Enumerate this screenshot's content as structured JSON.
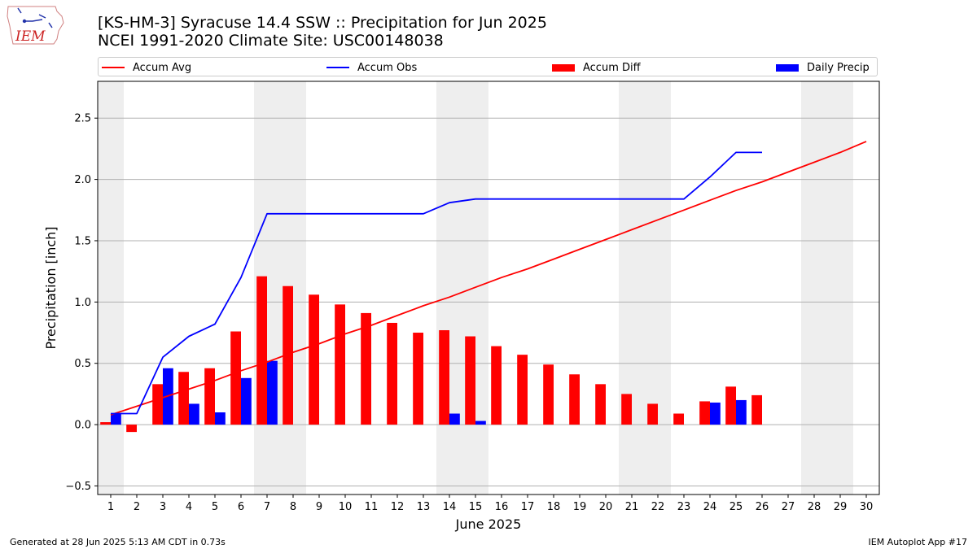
{
  "header": {
    "title_line1": "[KS-HM-3] Syracuse 14.4 SSW :: Precipitation for Jun 2025",
    "title_line2": "NCEI 1991-2020 Climate Site: USC00148038"
  },
  "logo": {
    "text": "IEM"
  },
  "legend": {
    "items": [
      {
        "label": "Accum Avg",
        "color": "#ff0000",
        "kind": "line"
      },
      {
        "label": "Accum Obs",
        "color": "#0000ff",
        "kind": "line"
      },
      {
        "label": "Accum Diff",
        "color": "#ff0000",
        "kind": "bar"
      },
      {
        "label": "Daily Precip",
        "color": "#0000ff",
        "kind": "bar"
      }
    ]
  },
  "footer": {
    "left": "Generated at 28 Jun 2025 5:13 AM CDT in 0.73s",
    "right": "IEM Autoplot App #17"
  },
  "chart_data": {
    "type": "bar",
    "xlabel": "June 2025",
    "ylabel": "Precipitation [inch]",
    "ylim": [
      -0.57,
      2.8
    ],
    "xlim": [
      0.5,
      30.5
    ],
    "yticks": [
      -0.5,
      0.0,
      0.5,
      1.0,
      1.5,
      2.0,
      2.5
    ],
    "ytick_labels": [
      "−0.5",
      "0.0",
      "0.5",
      "1.0",
      "1.5",
      "2.0",
      "2.5"
    ],
    "categories": [
      "1",
      "2",
      "3",
      "4",
      "5",
      "6",
      "7",
      "8",
      "9",
      "10",
      "11",
      "12",
      "13",
      "14",
      "15",
      "16",
      "17",
      "18",
      "19",
      "20",
      "21",
      "22",
      "23",
      "24",
      "25",
      "26",
      "27",
      "28",
      "29",
      "30"
    ],
    "grid": "horizontal",
    "weekend_shading": [
      [
        0.5,
        1.5
      ],
      [
        6.5,
        8.5
      ],
      [
        13.5,
        15.5
      ],
      [
        20.5,
        22.5
      ],
      [
        27.5,
        29.5
      ]
    ],
    "shade_color": "#eeeeee",
    "series": [
      {
        "name": "Accum Avg",
        "type": "line",
        "color": "#ff0000",
        "x": [
          1,
          2,
          3,
          4,
          5,
          6,
          7,
          8,
          9,
          10,
          11,
          12,
          13,
          14,
          15,
          16,
          17,
          18,
          19,
          20,
          21,
          22,
          23,
          24,
          25,
          26,
          27,
          28,
          29,
          30
        ],
        "values": [
          0.08,
          0.15,
          0.22,
          0.29,
          0.36,
          0.44,
          0.51,
          0.59,
          0.66,
          0.74,
          0.81,
          0.89,
          0.97,
          1.04,
          1.12,
          1.2,
          1.27,
          1.35,
          1.43,
          1.51,
          1.59,
          1.67,
          1.75,
          1.83,
          1.91,
          1.98,
          2.06,
          2.14,
          2.22,
          2.31
        ]
      },
      {
        "name": "Accum Obs",
        "type": "line",
        "color": "#0000ff",
        "x": [
          1,
          2,
          3,
          4,
          5,
          6,
          7,
          8,
          9,
          10,
          11,
          12,
          13,
          14,
          15,
          16,
          17,
          18,
          19,
          20,
          21,
          22,
          23,
          24,
          25,
          26
        ],
        "values": [
          0.09,
          0.09,
          0.55,
          0.72,
          0.82,
          1.2,
          1.72,
          1.72,
          1.72,
          1.72,
          1.72,
          1.72,
          1.72,
          1.81,
          1.84,
          1.84,
          1.84,
          1.84,
          1.84,
          1.84,
          1.84,
          1.84,
          1.84,
          2.02,
          2.22,
          2.22
        ]
      },
      {
        "name": "Accum Diff",
        "type": "bar",
        "color": "#ff0000",
        "offset": -0.2,
        "x": [
          1,
          2,
          3,
          4,
          5,
          6,
          7,
          8,
          9,
          10,
          11,
          12,
          13,
          14,
          15,
          16,
          17,
          18,
          19,
          20,
          21,
          22,
          23,
          24,
          25,
          26
        ],
        "values": [
          0.02,
          -0.06,
          0.33,
          0.43,
          0.46,
          0.76,
          1.21,
          1.13,
          1.06,
          0.98,
          0.91,
          0.83,
          0.75,
          0.77,
          0.72,
          0.64,
          0.57,
          0.49,
          0.41,
          0.33,
          0.25,
          0.17,
          0.09,
          0.19,
          0.31,
          0.24
        ]
      },
      {
        "name": "Daily Precip",
        "type": "bar",
        "color": "#0000ff",
        "offset": 0.2,
        "x": [
          1,
          2,
          3,
          4,
          5,
          6,
          7,
          8,
          9,
          10,
          11,
          12,
          13,
          14,
          15,
          16,
          17,
          18,
          19,
          20,
          21,
          22,
          23,
          24,
          25,
          26
        ],
        "values": [
          0.09,
          0,
          0.46,
          0.17,
          0.1,
          0.38,
          0.52,
          0,
          0,
          0,
          0,
          0,
          0,
          0.09,
          0.03,
          0,
          0,
          0,
          0,
          0,
          0,
          0,
          0,
          0.18,
          0.2,
          0
        ]
      }
    ]
  }
}
